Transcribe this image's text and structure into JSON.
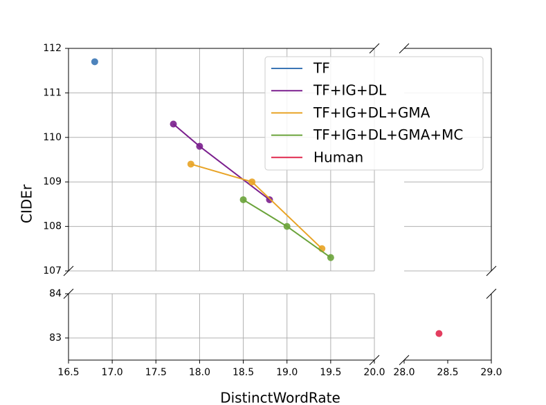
{
  "chart_data": {
    "type": "line",
    "x_label": "DistinctWordRate",
    "y_label": "CIDEr",
    "xlim": [
      16.5,
      20.0
    ],
    "xticks": [
      {
        "value": 16.5,
        "label": "16.5"
      },
      {
        "value": 17.0,
        "label": "17.0"
      },
      {
        "value": 17.5,
        "label": "17.5"
      },
      {
        "value": 18.0,
        "label": "18.0"
      },
      {
        "value": 18.5,
        "label": "18.5"
      },
      {
        "value": 19.0,
        "label": "19.0"
      },
      {
        "value": 19.5,
        "label": "19.5"
      },
      {
        "value": 20.0,
        "label": "20.0"
      }
    ],
    "x2lim": [
      28.0,
      29.0
    ],
    "x2ticks": [
      {
        "value": 28.0,
        "label": "28.0"
      },
      28.5,
      {
        "value": 29.0,
        "label": "29.0"
      }
    ],
    "ylim": [
      107,
      112
    ],
    "yticks": [
      107,
      108,
      109,
      110,
      111,
      112
    ],
    "y2lim": [
      82.5,
      84
    ],
    "y2ticks": [
      83,
      84
    ],
    "grid": true,
    "legend": "upper right",
    "series": [
      {
        "name": "TF",
        "color": "#3a75b5",
        "x": [
          16.8
        ],
        "values": [
          111.7
        ]
      },
      {
        "name": "TF+IG+DL",
        "color": "#7b1f8e",
        "x": [
          17.7,
          18.0,
          18.8
        ],
        "values": [
          110.3,
          109.8,
          108.6
        ]
      },
      {
        "name": "TF+IG+DL+GMA",
        "color": "#e8a325",
        "x": [
          17.9,
          18.6,
          19.4
        ],
        "values": [
          109.4,
          109.0,
          107.5
        ]
      },
      {
        "name": "TF+IG+DL+GMA+MC",
        "color": "#6aa33a",
        "x": [
          18.5,
          19.0,
          19.5
        ],
        "values": [
          108.6,
          108.0,
          107.3
        ]
      },
      {
        "name": "Human",
        "color": "#e0284e",
        "x": [
          28.4
        ],
        "values": [
          83.1
        ]
      }
    ]
  }
}
